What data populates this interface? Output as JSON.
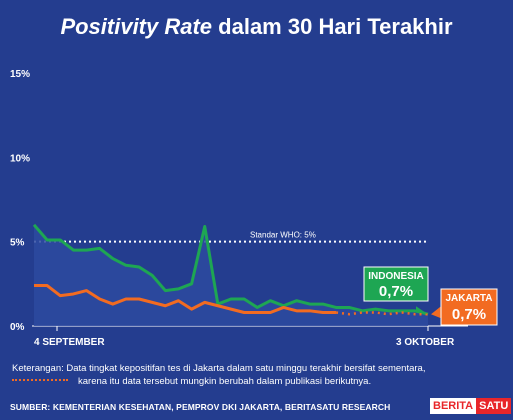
{
  "title": {
    "italic": "Positivity Rate",
    "rest": " dalam 30 Hari Terakhir"
  },
  "colors": {
    "background": "#243d8f",
    "indonesia": "#1ea653",
    "jakarta": "#f26b21",
    "area": "#2d4aa0"
  },
  "chart_data": {
    "type": "line",
    "yticks": [
      "15%",
      "10%",
      "5%",
      "0%"
    ],
    "ylim": [
      0,
      15
    ],
    "x_start_label": "4 SEPTEMBER",
    "x_end_label": "3 OKTOBER",
    "reference": {
      "value": 5,
      "label": "Standar WHO: 5%"
    },
    "series": [
      {
        "name": "INDONESIA",
        "last_label": "0,7%",
        "values": [
          6.0,
          5.1,
          5.1,
          4.5,
          4.5,
          4.6,
          4.0,
          3.6,
          3.5,
          3.0,
          2.1,
          2.2,
          2.5,
          5.9,
          1.3,
          1.6,
          1.6,
          1.1,
          1.5,
          1.2,
          1.5,
          1.3,
          1.3,
          1.1,
          1.1,
          0.9,
          1.0,
          0.9,
          0.9,
          0.9,
          0.7
        ]
      },
      {
        "name": "JAKARTA",
        "last_label": "0,7%",
        "values": [
          2.4,
          2.4,
          1.8,
          1.9,
          2.1,
          1.6,
          1.3,
          1.6,
          1.6,
          1.4,
          1.2,
          1.5,
          1.0,
          1.4,
          1.2,
          1.0,
          0.8,
          0.8,
          0.8,
          1.1,
          0.9,
          0.9,
          0.8,
          0.8,
          0.7,
          0.8,
          0.8,
          0.7,
          0.8,
          0.7,
          0.7
        ],
        "provisional_from_index": 23
      }
    ]
  },
  "note": {
    "line1": "Keterangan: Data tingkat kepositifan tes di Jakarta dalam satu minggu terakhir bersifat sementara,",
    "line2": "karena itu data tersebut mungkin berubah dalam publikasi berikutnya."
  },
  "footer": "SUMBER: KEMENTERIAN KESEHATAN, PEMPROV DKI JAKARTA, BERITASATU RESEARCH",
  "logo": {
    "part1": "BERITA",
    "part2": "SATU"
  }
}
